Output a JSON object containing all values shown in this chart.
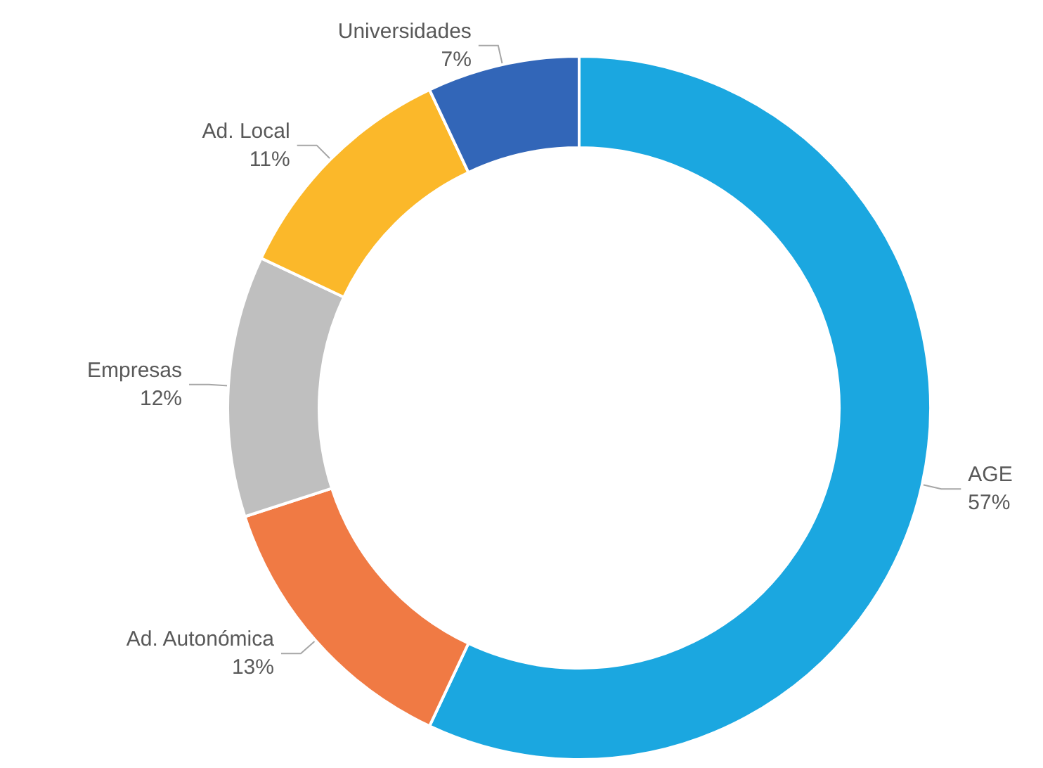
{
  "chart_data": {
    "type": "donut",
    "categories": [
      "AGE",
      "Ad. Autonómica",
      "Empresas",
      "Ad. Local",
      "Universidades"
    ],
    "values": [
      57,
      13,
      12,
      11,
      7
    ],
    "value_labels": [
      "57%",
      "13%",
      "12%",
      "11%",
      "7%"
    ],
    "colors": [
      "#1ba7e0",
      "#f07a44",
      "#bfbfbf",
      "#fbb82a",
      "#3266b8"
    ]
  }
}
